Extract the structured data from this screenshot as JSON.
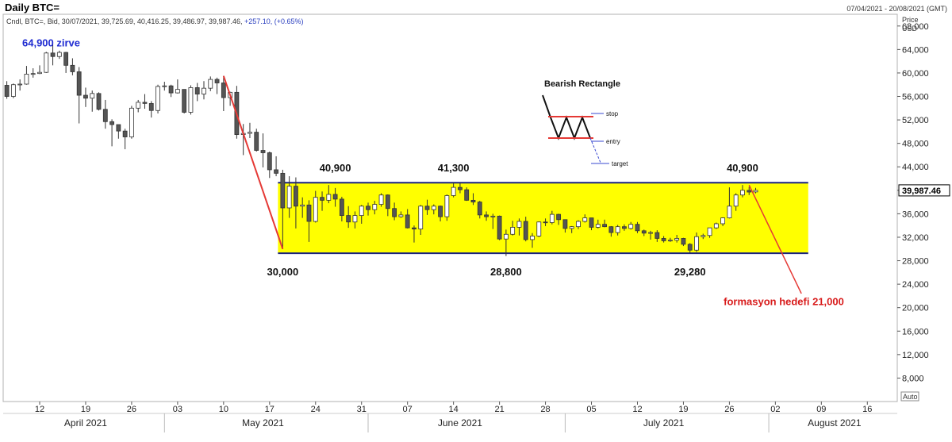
{
  "header": {
    "title": "Daily BTC=",
    "date_range": "07/04/2021 - 20/08/2021 (GMT)",
    "instrument_line": "Cndl, BTC=, Bid, 30/07/2021, 39,725.69, 40,416.25, 39,486.97, 39,987.46,",
    "change_text": "+257.10, (+0.65%)"
  },
  "chart_data": {
    "type": "candlestick",
    "price_axis_title": [
      "Price",
      "USD"
    ],
    "ylim": [
      4000,
      70000
    ],
    "y_ticks": [
      8000,
      12000,
      16000,
      20000,
      24000,
      28000,
      32000,
      36000,
      40000,
      44000,
      48000,
      52000,
      56000,
      60000,
      64000,
      68000
    ],
    "last_price_label": "39,987.46",
    "last_price": 39987.46,
    "axis_scale_label": "Auto",
    "x_range": [
      "2021-04-07",
      "2021-08-20"
    ],
    "x_day_ticks": [
      {
        "date": "2021-04-12",
        "label": "12"
      },
      {
        "date": "2021-04-19",
        "label": "19"
      },
      {
        "date": "2021-04-26",
        "label": "26"
      },
      {
        "date": "2021-05-03",
        "label": "03"
      },
      {
        "date": "2021-05-10",
        "label": "10"
      },
      {
        "date": "2021-05-17",
        "label": "17"
      },
      {
        "date": "2021-05-24",
        "label": "24"
      },
      {
        "date": "2021-05-31",
        "label": "31"
      },
      {
        "date": "2021-06-07",
        "label": "07"
      },
      {
        "date": "2021-06-14",
        "label": "14"
      },
      {
        "date": "2021-06-21",
        "label": "21"
      },
      {
        "date": "2021-06-28",
        "label": "28"
      },
      {
        "date": "2021-07-05",
        "label": "05"
      },
      {
        "date": "2021-07-12",
        "label": "12"
      },
      {
        "date": "2021-07-19",
        "label": "19"
      },
      {
        "date": "2021-07-26",
        "label": "26"
      },
      {
        "date": "2021-08-02",
        "label": "02"
      },
      {
        "date": "2021-08-09",
        "label": "09"
      },
      {
        "date": "2021-08-16",
        "label": "16"
      }
    ],
    "x_month_labels": [
      {
        "label": "April 2021",
        "center": "2021-04-19"
      },
      {
        "label": "May 2021",
        "center": "2021-05-16"
      },
      {
        "label": "June 2021",
        "center": "2021-06-15"
      },
      {
        "label": "July 2021",
        "center": "2021-07-16"
      },
      {
        "label": "August 2021",
        "center": "2021-08-11"
      }
    ],
    "x_month_dividers": [
      "2021-05-01",
      "2021-06-01",
      "2021-07-01",
      "2021-08-01"
    ],
    "candles": [
      {
        "d": "2021-04-07",
        "o": 57900,
        "h": 58600,
        "l": 55600,
        "c": 56000
      },
      {
        "d": "2021-04-08",
        "o": 56000,
        "h": 58200,
        "l": 55700,
        "c": 58000
      },
      {
        "d": "2021-04-09",
        "o": 58000,
        "h": 58900,
        "l": 57000,
        "c": 58100
      },
      {
        "d": "2021-04-10",
        "o": 58100,
        "h": 61200,
        "l": 58000,
        "c": 59800
      },
      {
        "d": "2021-04-11",
        "o": 59800,
        "h": 60800,
        "l": 59200,
        "c": 59900
      },
      {
        "d": "2021-04-12",
        "o": 59900,
        "h": 61300,
        "l": 59800,
        "c": 60100
      },
      {
        "d": "2021-04-13",
        "o": 60100,
        "h": 63600,
        "l": 60000,
        "c": 63400
      },
      {
        "d": "2021-04-14",
        "o": 63400,
        "h": 64900,
        "l": 61300,
        "c": 62800
      },
      {
        "d": "2021-04-15",
        "o": 62800,
        "h": 63800,
        "l": 62400,
        "c": 63500
      },
      {
        "d": "2021-04-16",
        "o": 63500,
        "h": 63600,
        "l": 60000,
        "c": 61300
      },
      {
        "d": "2021-04-17",
        "o": 61300,
        "h": 62500,
        "l": 59600,
        "c": 60200
      },
      {
        "d": "2021-04-18",
        "o": 60200,
        "h": 61000,
        "l": 51400,
        "c": 56200
      },
      {
        "d": "2021-04-19",
        "o": 56200,
        "h": 57500,
        "l": 54200,
        "c": 55700
      },
      {
        "d": "2021-04-20",
        "o": 55700,
        "h": 57000,
        "l": 53400,
        "c": 56500
      },
      {
        "d": "2021-04-21",
        "o": 56500,
        "h": 56700,
        "l": 53600,
        "c": 53800
      },
      {
        "d": "2021-04-22",
        "o": 53800,
        "h": 55400,
        "l": 50500,
        "c": 51700
      },
      {
        "d": "2021-04-23",
        "o": 51700,
        "h": 52100,
        "l": 47500,
        "c": 51200
      },
      {
        "d": "2021-04-24",
        "o": 51200,
        "h": 51200,
        "l": 48800,
        "c": 50100
      },
      {
        "d": "2021-04-25",
        "o": 50100,
        "h": 50500,
        "l": 47000,
        "c": 49100
      },
      {
        "d": "2021-04-26",
        "o": 49100,
        "h": 54400,
        "l": 48800,
        "c": 54000
      },
      {
        "d": "2021-04-27",
        "o": 54000,
        "h": 55400,
        "l": 53300,
        "c": 55000
      },
      {
        "d": "2021-04-28",
        "o": 55000,
        "h": 56400,
        "l": 53900,
        "c": 54800
      },
      {
        "d": "2021-04-29",
        "o": 54800,
        "h": 55200,
        "l": 52400,
        "c": 53600
      },
      {
        "d": "2021-04-30",
        "o": 53600,
        "h": 58000,
        "l": 53100,
        "c": 57700
      },
      {
        "d": "2021-05-01",
        "o": 57700,
        "h": 58500,
        "l": 57000,
        "c": 57800
      },
      {
        "d": "2021-05-02",
        "o": 57800,
        "h": 58000,
        "l": 55900,
        "c": 56600
      },
      {
        "d": "2021-05-03",
        "o": 56600,
        "h": 58900,
        "l": 56500,
        "c": 57200
      },
      {
        "d": "2021-05-04",
        "o": 57200,
        "h": 57200,
        "l": 53100,
        "c": 53300
      },
      {
        "d": "2021-05-05",
        "o": 53300,
        "h": 57900,
        "l": 52900,
        "c": 57500
      },
      {
        "d": "2021-05-06",
        "o": 57500,
        "h": 58300,
        "l": 55200,
        "c": 56400
      },
      {
        "d": "2021-05-07",
        "o": 56400,
        "h": 58600,
        "l": 55500,
        "c": 57400
      },
      {
        "d": "2021-05-08",
        "o": 57400,
        "h": 59400,
        "l": 56900,
        "c": 58900
      },
      {
        "d": "2021-05-09",
        "o": 58900,
        "h": 59200,
        "l": 56400,
        "c": 58300
      },
      {
        "d": "2021-05-10",
        "o": 58300,
        "h": 59500,
        "l": 53500,
        "c": 55800
      },
      {
        "d": "2021-05-11",
        "o": 55800,
        "h": 56800,
        "l": 54400,
        "c": 56700
      },
      {
        "d": "2021-05-12",
        "o": 56700,
        "h": 57800,
        "l": 48800,
        "c": 49500
      },
      {
        "d": "2021-05-13",
        "o": 49500,
        "h": 51300,
        "l": 46000,
        "c": 49700
      },
      {
        "d": "2021-05-14",
        "o": 49700,
        "h": 51500,
        "l": 48900,
        "c": 49900
      },
      {
        "d": "2021-05-15",
        "o": 49900,
        "h": 50500,
        "l": 46600,
        "c": 46800
      },
      {
        "d": "2021-05-16",
        "o": 46800,
        "h": 49700,
        "l": 43900,
        "c": 46400
      },
      {
        "d": "2021-05-17",
        "o": 46400,
        "h": 46600,
        "l": 42100,
        "c": 43500
      },
      {
        "d": "2021-05-18",
        "o": 43500,
        "h": 45800,
        "l": 42400,
        "c": 42900
      },
      {
        "d": "2021-05-19",
        "o": 42900,
        "h": 43500,
        "l": 30000,
        "c": 37000
      },
      {
        "d": "2021-05-20",
        "o": 37000,
        "h": 42400,
        "l": 35300,
        "c": 40700
      },
      {
        "d": "2021-05-21",
        "o": 40700,
        "h": 42200,
        "l": 33500,
        "c": 37300
      },
      {
        "d": "2021-05-22",
        "o": 37300,
        "h": 38800,
        "l": 35300,
        "c": 37500
      },
      {
        "d": "2021-05-23",
        "o": 37500,
        "h": 38300,
        "l": 31200,
        "c": 34700
      },
      {
        "d": "2021-05-24",
        "o": 34700,
        "h": 39900,
        "l": 34500,
        "c": 38800
      },
      {
        "d": "2021-05-25",
        "o": 38800,
        "h": 39800,
        "l": 36500,
        "c": 38300
      },
      {
        "d": "2021-05-26",
        "o": 38300,
        "h": 40900,
        "l": 37800,
        "c": 39300
      },
      {
        "d": "2021-05-27",
        "o": 39300,
        "h": 40400,
        "l": 37200,
        "c": 38500
      },
      {
        "d": "2021-05-28",
        "o": 38500,
        "h": 38900,
        "l": 34700,
        "c": 35700
      },
      {
        "d": "2021-05-29",
        "o": 35700,
        "h": 37300,
        "l": 33600,
        "c": 34600
      },
      {
        "d": "2021-05-30",
        "o": 34600,
        "h": 36400,
        "l": 33500,
        "c": 35700
      },
      {
        "d": "2021-05-31",
        "o": 35700,
        "h": 37500,
        "l": 34300,
        "c": 37300
      },
      {
        "d": "2021-06-01",
        "o": 37300,
        "h": 37900,
        "l": 35700,
        "c": 36700
      },
      {
        "d": "2021-06-02",
        "o": 36700,
        "h": 38200,
        "l": 35900,
        "c": 37600
      },
      {
        "d": "2021-06-03",
        "o": 37600,
        "h": 39500,
        "l": 37200,
        "c": 39200
      },
      {
        "d": "2021-06-04",
        "o": 39200,
        "h": 39300,
        "l": 35600,
        "c": 36900
      },
      {
        "d": "2021-06-05",
        "o": 36900,
        "h": 37900,
        "l": 34900,
        "c": 35500
      },
      {
        "d": "2021-06-06",
        "o": 35500,
        "h": 36400,
        "l": 35300,
        "c": 35800
      },
      {
        "d": "2021-06-07",
        "o": 35800,
        "h": 36800,
        "l": 33500,
        "c": 33600
      },
      {
        "d": "2021-06-08",
        "o": 33600,
        "h": 34000,
        "l": 31100,
        "c": 33400
      },
      {
        "d": "2021-06-09",
        "o": 33400,
        "h": 37500,
        "l": 32400,
        "c": 37300
      },
      {
        "d": "2021-06-10",
        "o": 37300,
        "h": 38400,
        "l": 35800,
        "c": 36700
      },
      {
        "d": "2021-06-11",
        "o": 36700,
        "h": 37600,
        "l": 35900,
        "c": 37300
      },
      {
        "d": "2021-06-12",
        "o": 37300,
        "h": 37400,
        "l": 34700,
        "c": 35500
      },
      {
        "d": "2021-06-13",
        "o": 35500,
        "h": 39300,
        "l": 34800,
        "c": 39100
      },
      {
        "d": "2021-06-14",
        "o": 39100,
        "h": 41300,
        "l": 38800,
        "c": 40500
      },
      {
        "d": "2021-06-15",
        "o": 40500,
        "h": 41300,
        "l": 39500,
        "c": 40100
      },
      {
        "d": "2021-06-16",
        "o": 40100,
        "h": 40500,
        "l": 38200,
        "c": 38300
      },
      {
        "d": "2021-06-17",
        "o": 38300,
        "h": 39500,
        "l": 37500,
        "c": 38000
      },
      {
        "d": "2021-06-18",
        "o": 38000,
        "h": 38200,
        "l": 35200,
        "c": 35800
      },
      {
        "d": "2021-06-19",
        "o": 35800,
        "h": 36400,
        "l": 34800,
        "c": 35500
      },
      {
        "d": "2021-06-20",
        "o": 35500,
        "h": 36000,
        "l": 33400,
        "c": 35600
      },
      {
        "d": "2021-06-21",
        "o": 35600,
        "h": 35700,
        "l": 31500,
        "c": 31700
      },
      {
        "d": "2021-06-22",
        "o": 31700,
        "h": 33300,
        "l": 28800,
        "c": 32500
      },
      {
        "d": "2021-06-23",
        "o": 32500,
        "h": 34800,
        "l": 32300,
        "c": 33700
      },
      {
        "d": "2021-06-24",
        "o": 33700,
        "h": 35200,
        "l": 32300,
        "c": 34700
      },
      {
        "d": "2021-06-25",
        "o": 34700,
        "h": 35500,
        "l": 31300,
        "c": 31600
      },
      {
        "d": "2021-06-26",
        "o": 31600,
        "h": 32700,
        "l": 30200,
        "c": 32200
      },
      {
        "d": "2021-06-27",
        "o": 32200,
        "h": 34700,
        "l": 32000,
        "c": 34600
      },
      {
        "d": "2021-06-28",
        "o": 34600,
        "h": 35200,
        "l": 33900,
        "c": 34500
      },
      {
        "d": "2021-06-29",
        "o": 34500,
        "h": 36500,
        "l": 34200,
        "c": 35900
      },
      {
        "d": "2021-06-30",
        "o": 35900,
        "h": 36000,
        "l": 34100,
        "c": 35000
      },
      {
        "d": "2021-07-01",
        "o": 35000,
        "h": 35000,
        "l": 32800,
        "c": 33500
      },
      {
        "d": "2021-07-02",
        "o": 33500,
        "h": 33900,
        "l": 32700,
        "c": 33800
      },
      {
        "d": "2021-07-03",
        "o": 33800,
        "h": 34900,
        "l": 33400,
        "c": 34700
      },
      {
        "d": "2021-07-04",
        "o": 34700,
        "h": 35900,
        "l": 34500,
        "c": 35300
      },
      {
        "d": "2021-07-05",
        "o": 35300,
        "h": 35300,
        "l": 33200,
        "c": 33700
      },
      {
        "d": "2021-07-06",
        "o": 33700,
        "h": 35000,
        "l": 33500,
        "c": 34200
      },
      {
        "d": "2021-07-07",
        "o": 34200,
        "h": 35000,
        "l": 33700,
        "c": 33800
      },
      {
        "d": "2021-07-08",
        "o": 33800,
        "h": 33900,
        "l": 32100,
        "c": 32800
      },
      {
        "d": "2021-07-09",
        "o": 32800,
        "h": 34100,
        "l": 32300,
        "c": 33800
      },
      {
        "d": "2021-07-10",
        "o": 33800,
        "h": 34200,
        "l": 33100,
        "c": 33500
      },
      {
        "d": "2021-07-11",
        "o": 33500,
        "h": 34600,
        "l": 33300,
        "c": 34200
      },
      {
        "d": "2021-07-12",
        "o": 34200,
        "h": 34600,
        "l": 32700,
        "c": 33100
      },
      {
        "d": "2021-07-13",
        "o": 33100,
        "h": 33300,
        "l": 32200,
        "c": 32700
      },
      {
        "d": "2021-07-14",
        "o": 32700,
        "h": 33100,
        "l": 31600,
        "c": 32800
      },
      {
        "d": "2021-07-15",
        "o": 32800,
        "h": 33200,
        "l": 31200,
        "c": 31800
      },
      {
        "d": "2021-07-16",
        "o": 31800,
        "h": 32200,
        "l": 31100,
        "c": 31400
      },
      {
        "d": "2021-07-17",
        "o": 31400,
        "h": 31900,
        "l": 31200,
        "c": 31500
      },
      {
        "d": "2021-07-18",
        "o": 31500,
        "h": 32400,
        "l": 31100,
        "c": 31800
      },
      {
        "d": "2021-07-19",
        "o": 31800,
        "h": 31900,
        "l": 30500,
        "c": 30800
      },
      {
        "d": "2021-07-20",
        "o": 30800,
        "h": 31000,
        "l": 29280,
        "c": 29800
      },
      {
        "d": "2021-07-21",
        "o": 29800,
        "h": 32800,
        "l": 29500,
        "c": 32100
      },
      {
        "d": "2021-07-22",
        "o": 32100,
        "h": 32600,
        "l": 31700,
        "c": 32300
      },
      {
        "d": "2021-07-23",
        "o": 32300,
        "h": 33600,
        "l": 31900,
        "c": 33600
      },
      {
        "d": "2021-07-24",
        "o": 33600,
        "h": 34500,
        "l": 33400,
        "c": 34300
      },
      {
        "d": "2021-07-25",
        "o": 34300,
        "h": 35400,
        "l": 33900,
        "c": 35300
      },
      {
        "d": "2021-07-26",
        "o": 35300,
        "h": 40500,
        "l": 35200,
        "c": 37300
      },
      {
        "d": "2021-07-27",
        "o": 37300,
        "h": 39500,
        "l": 36500,
        "c": 39200
      },
      {
        "d": "2021-07-28",
        "o": 39200,
        "h": 40900,
        "l": 38800,
        "c": 40000
      },
      {
        "d": "2021-07-29",
        "o": 40000,
        "h": 40600,
        "l": 39200,
        "c": 39700
      },
      {
        "d": "2021-07-30",
        "o": 39725.69,
        "h": 40416.25,
        "l": 39486.97,
        "c": 39987.46
      }
    ],
    "annotations": {
      "peak_label": {
        "text": "64,900 zirve",
        "date": "2021-04-14",
        "price": 64900
      },
      "range_top": 41300,
      "range_bottom": 29280,
      "range_start": "2021-05-19",
      "range_end": "2021-08-07",
      "range_labels": [
        {
          "text": "40,900",
          "date": "2021-05-27",
          "price": 40900,
          "pos": "above"
        },
        {
          "text": "41,300",
          "date": "2021-06-14",
          "price": 41300,
          "pos": "above"
        },
        {
          "text": "40,900",
          "date": "2021-07-28",
          "price": 40900,
          "pos": "above"
        },
        {
          "text": "30,000",
          "date": "2021-05-19",
          "price": 30000,
          "pos": "below"
        },
        {
          "text": "28,800",
          "date": "2021-06-22",
          "price": 28800,
          "pos": "below"
        },
        {
          "text": "29,280",
          "date": "2021-07-20",
          "price": 29280,
          "pos": "below"
        }
      ],
      "down_trend": {
        "from": {
          "date": "2021-05-10",
          "price": 59500
        },
        "to": {
          "date": "2021-05-19",
          "price": 30000
        }
      },
      "target_line": {
        "from": {
          "date": "2021-07-29",
          "price": 40900
        },
        "to": {
          "date": "2021-08-03",
          "price": 29280
        }
      },
      "target_label": "formasyon hedefi 21,000",
      "inset": {
        "title": "Bearish Rectangle",
        "stop_label": "stop",
        "entry_label": "entry",
        "target_label": "target"
      }
    },
    "colors": {
      "up_candle": "#ffffff",
      "down_candle": "#555555",
      "range_fill": "#ffff00",
      "range_border": "#1a237e",
      "trend_line": "#e53935",
      "peak_text": "#1f2bd1",
      "target_text": "#d81b1b"
    }
  }
}
